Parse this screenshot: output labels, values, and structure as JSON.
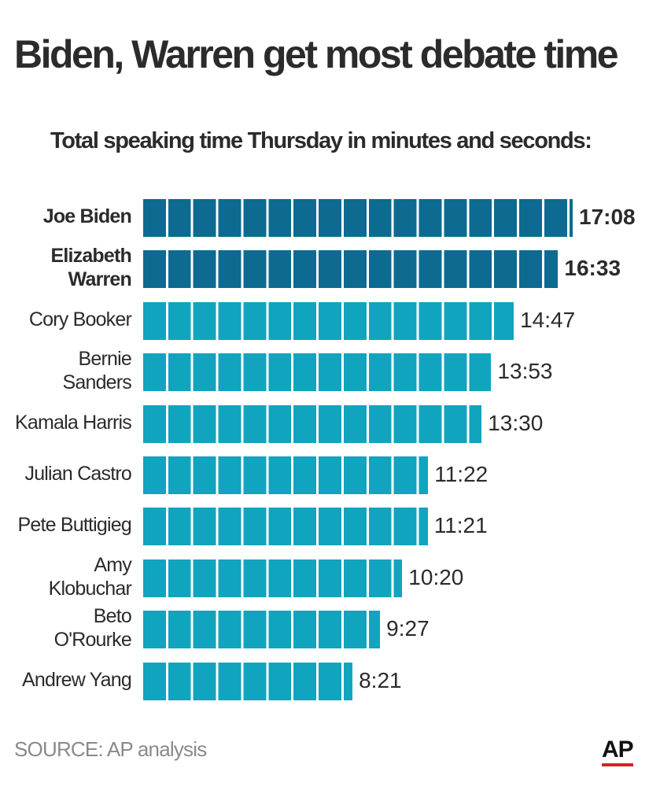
{
  "chart_data": {
    "type": "bar",
    "orientation": "horizontal",
    "title": "Biden, Warren get most debate time",
    "subtitle": "Total speaking time Thursday in minutes and seconds:",
    "categories": [
      "Joe Biden",
      "Elizabeth\nWarren",
      "Cory Booker",
      "Bernie\nSanders",
      "Kamala Harris",
      "Julian Castro",
      "Pete Buttigieg",
      "Amy\nKlobuchar",
      "Beto\nO'Rourke",
      "Andrew Yang"
    ],
    "values": [
      1028,
      993,
      887,
      833,
      810,
      682,
      681,
      620,
      567,
      501
    ],
    "value_labels": [
      "17:08",
      "16:33",
      "14:47",
      "13:53",
      "13:30",
      "11:22",
      "11:21",
      "10:20",
      "9:27",
      "8:21"
    ],
    "colors": [
      "#0d6b91",
      "#0d6b91",
      "#11a4bf",
      "#11a4bf",
      "#11a4bf",
      "#11a4bf",
      "#11a4bf",
      "#11a4bf",
      "#11a4bf",
      "#11a4bf"
    ],
    "bold": [
      true,
      true,
      false,
      false,
      false,
      false,
      false,
      false,
      false,
      false
    ],
    "source": "SOURCE: AP analysis",
    "logo": "AP"
  }
}
